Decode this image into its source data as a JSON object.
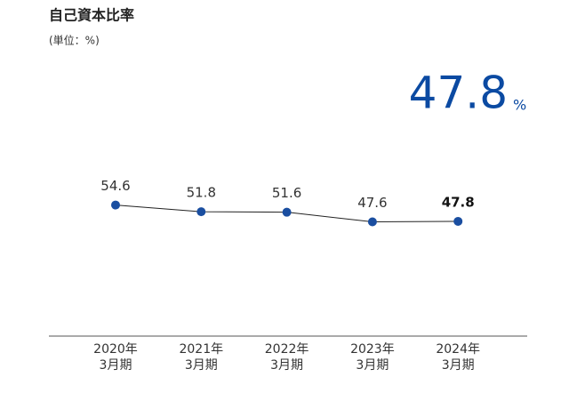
{
  "chart_data": {
    "type": "line",
    "title": "自己資本比率",
    "subtitle": "(単位：%)",
    "highlight_value": 47.8,
    "highlight_unit": "%",
    "categories": [
      "2020年\n3月期",
      "2021年\n3月期",
      "2022年\n3月期",
      "2023年\n3月期",
      "2024年\n3月期"
    ],
    "values": [
      54.6,
      51.8,
      51.6,
      47.6,
      47.8
    ],
    "color": "#1a4ea0",
    "line_color": "#222222",
    "highlight_color": "#0b4aa2",
    "ylim": [
      0,
      100
    ]
  }
}
